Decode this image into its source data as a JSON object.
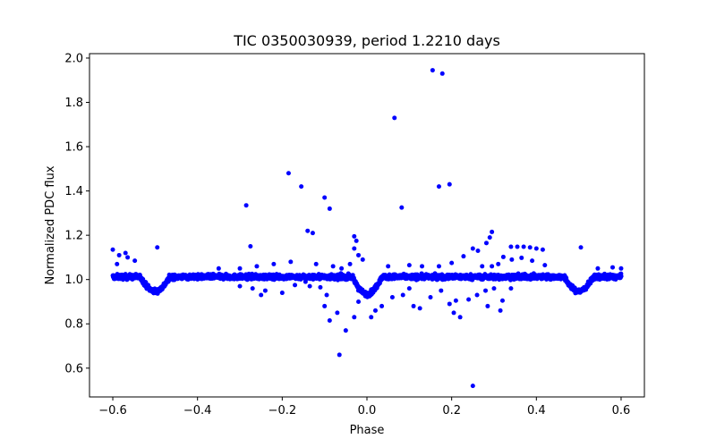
{
  "chart_data": {
    "type": "scatter",
    "title": "TIC 0350030939, period 1.2210 days",
    "xlabel": "Phase",
    "ylabel": "Normalized PDC flux",
    "xlim": [
      -0.655,
      0.655
    ],
    "ylim": [
      0.47,
      2.02
    ],
    "xticks": [
      -0.6,
      -0.4,
      -0.2,
      0.0,
      0.2,
      0.4,
      0.6
    ],
    "xtick_labels": [
      "−0.6",
      "−0.4",
      "−0.2",
      "0.0",
      "0.2",
      "0.4",
      "0.6"
    ],
    "yticks": [
      0.6,
      0.8,
      1.0,
      1.2,
      1.4,
      1.6,
      1.8,
      2.0
    ],
    "ytick_labels": [
      "0.6",
      "0.8",
      "1.0",
      "1.2",
      "1.4",
      "1.6",
      "1.8",
      "2.0"
    ],
    "grid": false,
    "marker_color": "#0000ff",
    "baseline_model": {
      "level": 1.012,
      "primary_eclipse": {
        "phase": 0.0,
        "depth": 0.078,
        "half_width": 0.035
      },
      "secondary_eclipse": {
        "phase": 0.5,
        "depth": 0.065,
        "half_width": 0.035
      }
    },
    "points": [
      [
        0.155,
        1.945
      ],
      [
        0.178,
        1.93
      ],
      [
        0.065,
        1.73
      ],
      [
        -0.185,
        1.48
      ],
      [
        0.195,
        1.43
      ],
      [
        0.17,
        1.42
      ],
      [
        -0.155,
        1.42
      ],
      [
        -0.1,
        1.37
      ],
      [
        -0.285,
        1.335
      ],
      [
        0.082,
        1.325
      ],
      [
        -0.088,
        1.32
      ],
      [
        -0.14,
        1.22
      ],
      [
        -0.128,
        1.21
      ],
      [
        0.295,
        1.215
      ],
      [
        -0.03,
        1.195
      ],
      [
        0.29,
        1.19
      ],
      [
        -0.025,
        1.175
      ],
      [
        0.282,
        1.165
      ],
      [
        0.25,
        1.14
      ],
      [
        0.34,
        1.148
      ],
      [
        0.355,
        1.148
      ],
      [
        0.37,
        1.148
      ],
      [
        0.385,
        1.145
      ],
      [
        0.4,
        1.14
      ],
      [
        0.415,
        1.135
      ],
      [
        0.505,
        1.145
      ],
      [
        -0.495,
        1.145
      ],
      [
        -0.275,
        1.15
      ],
      [
        -0.6,
        1.135
      ],
      [
        -0.585,
        1.11
      ],
      [
        -0.57,
        1.12
      ],
      [
        -0.565,
        1.1
      ],
      [
        -0.548,
        1.085
      ],
      [
        -0.59,
        1.07
      ],
      [
        -0.03,
        1.14
      ],
      [
        0.262,
        1.13
      ],
      [
        0.228,
        1.105
      ],
      [
        0.322,
        1.102
      ],
      [
        0.342,
        1.09
      ],
      [
        0.365,
        1.098
      ],
      [
        0.39,
        1.085
      ],
      [
        0.31,
        1.07
      ],
      [
        0.272,
        1.06
      ],
      [
        0.295,
        1.06
      ],
      [
        0.42,
        1.065
      ],
      [
        0.2,
        1.075
      ],
      [
        0.17,
        1.06
      ],
      [
        0.13,
        1.06
      ],
      [
        0.1,
        1.065
      ],
      [
        0.05,
        1.06
      ],
      [
        -0.02,
        1.11
      ],
      [
        -0.01,
        1.09
      ],
      [
        -0.04,
        1.07
      ],
      [
        -0.06,
        1.05
      ],
      [
        -0.08,
        1.06
      ],
      [
        -0.12,
        1.07
      ],
      [
        -0.18,
        1.08
      ],
      [
        -0.22,
        1.07
      ],
      [
        -0.26,
        1.06
      ],
      [
        -0.3,
        1.05
      ],
      [
        -0.35,
        1.05
      ],
      [
        0.545,
        1.05
      ],
      [
        0.58,
        1.055
      ],
      [
        0.6,
        1.05
      ],
      [
        -0.145,
        0.99
      ],
      [
        -0.135,
        0.97
      ],
      [
        -0.11,
        0.965
      ],
      [
        -0.095,
        0.93
      ],
      [
        -0.088,
        0.815
      ],
      [
        -0.1,
        0.88
      ],
      [
        -0.07,
        0.85
      ],
      [
        -0.065,
        0.66
      ],
      [
        -0.05,
        0.77
      ],
      [
        -0.03,
        0.83
      ],
      [
        -0.02,
        0.9
      ],
      [
        0.01,
        0.83
      ],
      [
        0.02,
        0.86
      ],
      [
        0.035,
        0.88
      ],
      [
        0.06,
        0.92
      ],
      [
        0.085,
        0.93
      ],
      [
        0.1,
        0.96
      ],
      [
        0.11,
        0.88
      ],
      [
        0.125,
        0.87
      ],
      [
        0.15,
        0.92
      ],
      [
        0.175,
        0.95
      ],
      [
        0.195,
        0.89
      ],
      [
        0.205,
        0.85
      ],
      [
        0.22,
        0.83
      ],
      [
        0.24,
        0.91
      ],
      [
        0.26,
        0.93
      ],
      [
        0.25,
        0.52
      ],
      [
        0.28,
        0.95
      ],
      [
        0.3,
        0.96
      ],
      [
        0.32,
        0.905
      ],
      [
        0.285,
        0.88
      ],
      [
        0.315,
        0.86
      ],
      [
        0.34,
        0.96
      ],
      [
        -0.25,
        0.93
      ],
      [
        -0.24,
        0.95
      ],
      [
        -0.2,
        0.94
      ],
      [
        -0.27,
        0.96
      ],
      [
        -0.3,
        0.97
      ],
      [
        -0.17,
        0.975
      ],
      [
        0.21,
        0.905
      ]
    ]
  }
}
